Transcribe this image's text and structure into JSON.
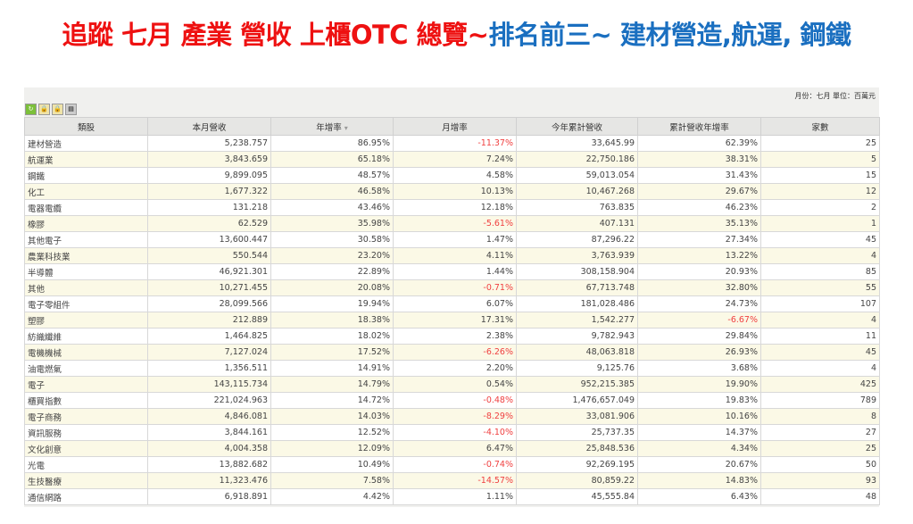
{
  "title": {
    "red": "追蹤 七月 產業 營收 上櫃OTC 總覽~",
    "blue": "排名前三~ 建材營造,航運, 鋼鐵"
  },
  "meta": "月份：七月 單位：百萬元",
  "toolbar_icons": [
    "csv-icon",
    "lock-icon",
    "lock-icon",
    "print-icon"
  ],
  "colors": {
    "title_red": "#ee1111",
    "title_blue": "#1a6fc0",
    "negative": "#f04040",
    "row_alt": "#fbf9e6"
  },
  "table": {
    "headers": [
      "類股",
      "本月營收",
      "年增率",
      "月增率",
      "今年累計營收",
      "累計營收年增率",
      "家數"
    ],
    "sort_indicator": "▾",
    "rows": [
      [
        "建材營造",
        "5,238.757",
        "86.95%",
        "-11.37%",
        "33,645.99",
        "62.39%",
        "25"
      ],
      [
        "航運業",
        "3,843.659",
        "65.18%",
        "7.24%",
        "22,750.186",
        "38.31%",
        "5"
      ],
      [
        "鋼鐵",
        "9,899.095",
        "48.57%",
        "4.58%",
        "59,013.054",
        "31.43%",
        "15"
      ],
      [
        "化工",
        "1,677.322",
        "46.58%",
        "10.13%",
        "10,467.268",
        "29.67%",
        "12"
      ],
      [
        "電器電纜",
        "131.218",
        "43.46%",
        "12.18%",
        "763.835",
        "46.23%",
        "2"
      ],
      [
        "橡膠",
        "62.529",
        "35.98%",
        "-5.61%",
        "407.131",
        "35.13%",
        "1"
      ],
      [
        "其他電子",
        "13,600.447",
        "30.58%",
        "1.47%",
        "87,296.22",
        "27.34%",
        "45"
      ],
      [
        "農業科技業",
        "550.544",
        "23.20%",
        "4.11%",
        "3,763.939",
        "13.22%",
        "4"
      ],
      [
        "半導體",
        "46,921.301",
        "22.89%",
        "1.44%",
        "308,158.904",
        "20.93%",
        "85"
      ],
      [
        "其他",
        "10,271.455",
        "20.08%",
        "-0.71%",
        "67,713.748",
        "32.80%",
        "55"
      ],
      [
        "電子零組件",
        "28,099.566",
        "19.94%",
        "6.07%",
        "181,028.486",
        "24.73%",
        "107"
      ],
      [
        "塑膠",
        "212.889",
        "18.38%",
        "17.31%",
        "1,542.277",
        "-6.67%",
        "4"
      ],
      [
        "紡織纖維",
        "1,464.825",
        "18.02%",
        "2.38%",
        "9,782.943",
        "29.84%",
        "11"
      ],
      [
        "電機機械",
        "7,127.024",
        "17.52%",
        "-6.26%",
        "48,063.818",
        "26.93%",
        "45"
      ],
      [
        "油電燃氣",
        "1,356.511",
        "14.91%",
        "2.20%",
        "9,125.76",
        "3.68%",
        "4"
      ],
      [
        "電子",
        "143,115.734",
        "14.79%",
        "0.54%",
        "952,215.385",
        "19.90%",
        "425"
      ],
      [
        "櫃買指數",
        "221,024.963",
        "14.72%",
        "-0.48%",
        "1,476,657.049",
        "19.83%",
        "789"
      ],
      [
        "電子商務",
        "4,846.081",
        "14.03%",
        "-8.29%",
        "33,081.906",
        "10.16%",
        "8"
      ],
      [
        "資訊服務",
        "3,844.161",
        "12.52%",
        "-4.10%",
        "25,737.35",
        "14.37%",
        "27"
      ],
      [
        "文化創意",
        "4,004.358",
        "12.09%",
        "6.47%",
        "25,848.536",
        "4.34%",
        "25"
      ],
      [
        "光電",
        "13,882.682",
        "10.49%",
        "-0.74%",
        "92,269.195",
        "20.67%",
        "50"
      ],
      [
        "生技醫療",
        "11,323.476",
        "7.58%",
        "-14.57%",
        "80,859.22",
        "14.83%",
        "93"
      ],
      [
        "通信網路",
        "6,918.891",
        "4.42%",
        "1.11%",
        "45,555.84",
        "6.43%",
        "48"
      ]
    ]
  }
}
